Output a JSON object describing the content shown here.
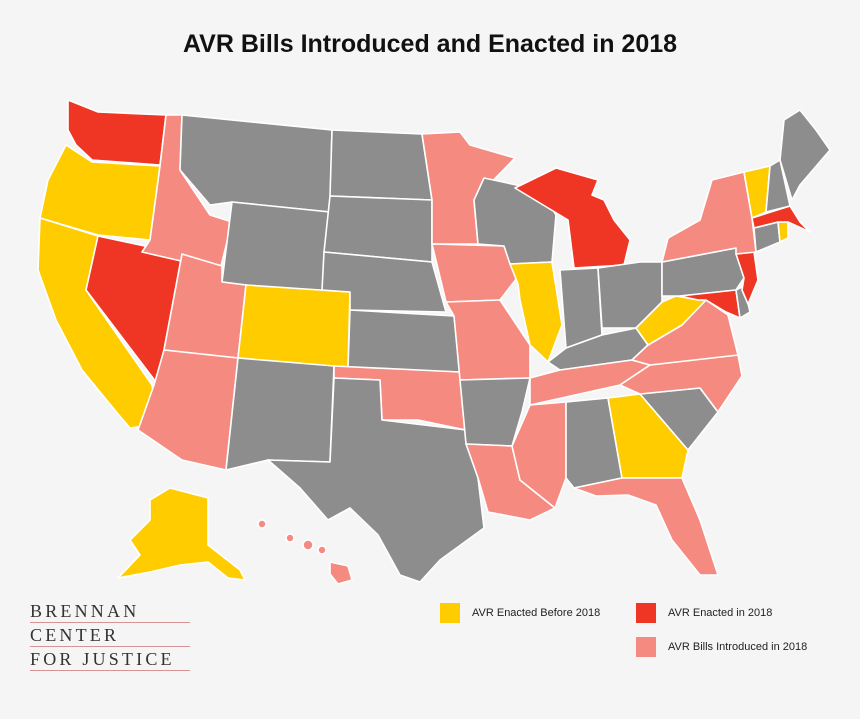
{
  "title": "AVR Bills Introduced and Enacted in 2018",
  "colors": {
    "enacted_before": "#ffcc00",
    "enacted_2018": "#ef3523",
    "introduced_2018": "#f58a80",
    "none": "#8d8d8d"
  },
  "legend": {
    "enacted_before": "AVR Enacted Before 2018",
    "enacted_2018": "AVR Enacted in 2018",
    "introduced_2018": "AVR Bills Introduced in 2018"
  },
  "logo": {
    "line1": "BRENNAN",
    "line2": "CENTER",
    "line3": "FOR JUSTICE"
  },
  "states": {
    "WA": "enacted_2018",
    "OR": "enacted_before",
    "CA": "enacted_before",
    "NV": "enacted_2018",
    "ID": "introduced_2018",
    "MT": "none",
    "WY": "none",
    "UT": "introduced_2018",
    "AZ": "introduced_2018",
    "CO": "enacted_before",
    "NM": "none",
    "ND": "none",
    "SD": "none",
    "NE": "none",
    "KS": "none",
    "OK": "introduced_2018",
    "TX": "none",
    "MN": "introduced_2018",
    "IA": "introduced_2018",
    "MO": "introduced_2018",
    "AR": "none",
    "LA": "introduced_2018",
    "WI": "none",
    "IL": "enacted_before",
    "MI": "enacted_2018",
    "IN": "none",
    "OH": "none",
    "KY": "none",
    "TN": "introduced_2018",
    "MS": "introduced_2018",
    "AL": "none",
    "GA": "enacted_before",
    "FL": "introduced_2018",
    "SC": "none",
    "NC": "introduced_2018",
    "VA": "introduced_2018",
    "WV": "enacted_before",
    "MD": "enacted_2018",
    "DE": "none",
    "PA": "none",
    "NJ": "enacted_2018",
    "NY": "introduced_2018",
    "CT": "none",
    "RI": "enacted_before",
    "MA": "enacted_2018",
    "VT": "enacted_before",
    "NH": "none",
    "ME": "none",
    "AK": "enacted_before",
    "HI": "introduced_2018"
  }
}
